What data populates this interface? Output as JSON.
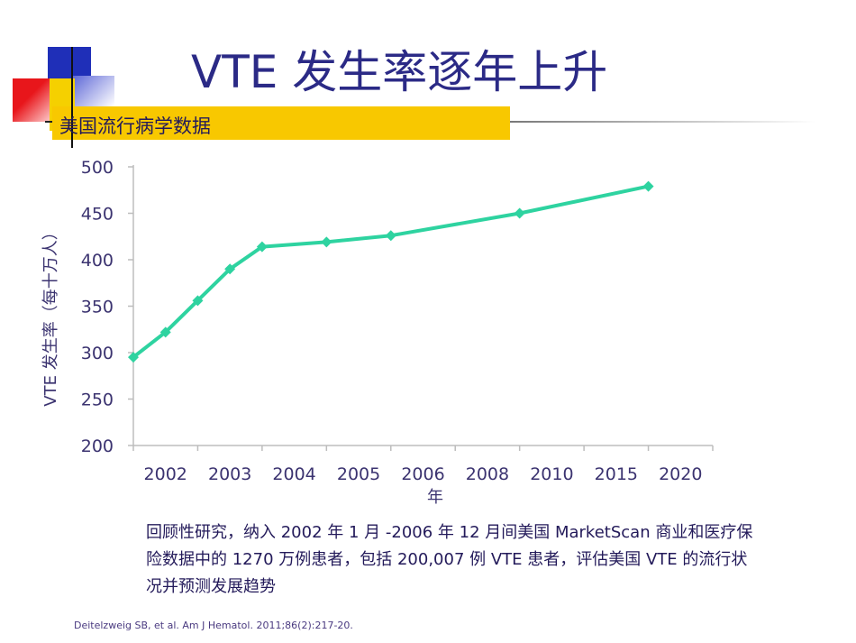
{
  "slide": {
    "title": "VTE 发生率逐年上升",
    "subtitle": "美国流行病学数据",
    "note": "回顾性研究，纳入 2002 年 1 月 -2006 年 12 月间美国 MarketScan 商业和医疗保险数据中的 1270 万例患者，包括 200,007 例 VTE 患者，评估美国 VTE 的流行状况并预测发展趋势",
    "citation": "Deitelzweig SB, et al. Am J Hematol. 2011;86(2):217-20."
  },
  "colors": {
    "line": "#2ed3a0",
    "title": "#2b2a86",
    "subtitle_bar": "#f8c800"
  },
  "chart_data": {
    "type": "line",
    "xlabel": "年",
    "ylabel": "VTE 发生率（每十万人）",
    "x_ticks": [
      "2002",
      "2003",
      "2004",
      "2005",
      "2006",
      "2008",
      "2010",
      "2015",
      "2020"
    ],
    "ylim": [
      200,
      500
    ],
    "y_ticks": [
      200,
      250,
      300,
      350,
      400,
      450,
      500
    ],
    "grid": false,
    "series": [
      {
        "x": [
          2002,
          2002.5,
          2003,
          2003.5,
          2004,
          2005,
          2006,
          2010,
          2020
        ],
        "values": [
          295,
          322,
          356,
          390,
          414,
          419,
          426,
          450,
          479
        ]
      }
    ]
  }
}
